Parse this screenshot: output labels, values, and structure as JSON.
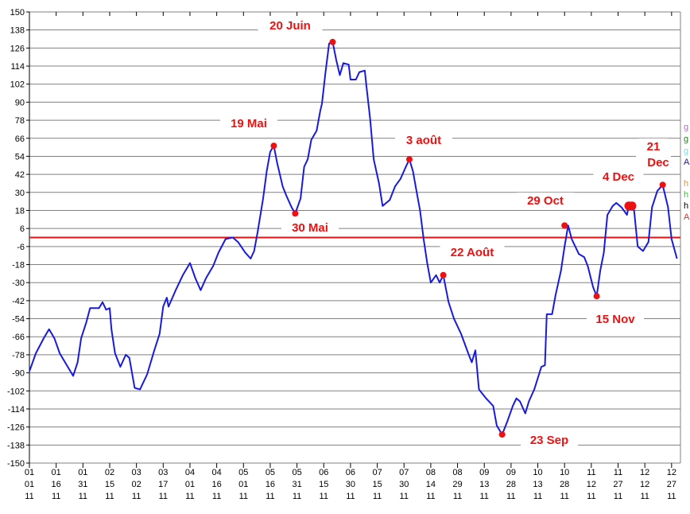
{
  "chart_data": {
    "type": "line",
    "title": "",
    "xlabel": "",
    "ylabel": "",
    "ylim": [
      -150,
      150
    ],
    "ytick_step": 12,
    "grid": "horizontal",
    "x_unit": "days since 01/01/11",
    "xlim": [
      0,
      364
    ],
    "x_tick_labels": [
      [
        "01",
        "01",
        "11"
      ],
      [
        "01",
        "16",
        "11"
      ],
      [
        "01",
        "31",
        "11"
      ],
      [
        "02",
        "15",
        "11"
      ],
      [
        "03",
        "02",
        "11"
      ],
      [
        "03",
        "17",
        "11"
      ],
      [
        "04",
        "01",
        "11"
      ],
      [
        "04",
        "16",
        "11"
      ],
      [
        "05",
        "01",
        "11"
      ],
      [
        "05",
        "16",
        "11"
      ],
      [
        "05",
        "31",
        "11"
      ],
      [
        "06",
        "15",
        "11"
      ],
      [
        "06",
        "30",
        "11"
      ],
      [
        "07",
        "15",
        "11"
      ],
      [
        "07",
        "30",
        "11"
      ],
      [
        "08",
        "14",
        "11"
      ],
      [
        "08",
        "29",
        "11"
      ],
      [
        "09",
        "13",
        "11"
      ],
      [
        "09",
        "28",
        "11"
      ],
      [
        "10",
        "13",
        "11"
      ],
      [
        "10",
        "28",
        "11"
      ],
      [
        "11",
        "12",
        "11"
      ],
      [
        "11",
        "27",
        "11"
      ],
      [
        "12",
        "12",
        "11"
      ],
      [
        "12",
        "27",
        "11"
      ]
    ],
    "reference_line": {
      "value": 0,
      "color": "#ee1111"
    },
    "series": [
      {
        "name": "series",
        "color": "#1a1adf",
        "x": [
          0,
          3.6,
          8,
          11,
          14,
          17,
          21,
          24.5,
          27,
          29,
          32,
          34,
          39,
          41,
          43,
          45,
          46,
          48,
          51,
          54,
          56,
          59,
          62,
          66,
          70,
          73,
          75,
          77,
          78,
          82,
          86,
          90,
          93,
          96,
          99,
          103,
          106,
          110,
          114,
          117,
          121,
          124,
          126,
          128,
          131,
          133,
          135,
          137,
          139,
          142,
          144,
          147,
          149,
          152,
          154,
          156,
          158,
          161,
          163,
          164,
          166,
          168,
          170,
          172,
          174,
          176,
          179,
          180,
          183,
          185,
          188,
          189,
          191,
          193,
          196,
          198,
          202,
          205,
          208,
          211,
          213,
          215,
          217,
          219,
          221,
          223,
          225,
          228,
          230,
          232,
          235,
          238,
          242,
          246,
          248,
          250,
          252,
          256,
          260,
          262,
          265,
          268,
          271,
          273,
          275,
          278,
          280,
          283,
          287,
          289,
          290,
          293,
          295,
          298,
          300,
          302,
          304,
          308,
          311,
          313,
          316,
          318,
          320,
          322,
          324,
          327,
          329,
          332,
          335,
          336,
          339,
          341,
          344,
          347,
          349,
          352,
          355,
          358,
          360,
          363
        ],
        "y": [
          -89,
          -77,
          -67,
          -61,
          -67,
          -77,
          -85,
          -92,
          -83,
          -67,
          -56,
          -47,
          -47,
          -43,
          -48,
          -47,
          -61,
          -77,
          -86,
          -78,
          -80,
          -100,
          -101,
          -91,
          -75,
          -64,
          -46,
          -40,
          -46,
          -35,
          -25,
          -17,
          -27,
          -35,
          -27,
          -19,
          -10,
          -1,
          0,
          -3,
          -10,
          -14,
          -9,
          4,
          26,
          44,
          57,
          61,
          49,
          34,
          28,
          20,
          16,
          26,
          47,
          52,
          65,
          71,
          84,
          89,
          110,
          129,
          130,
          118,
          108,
          116,
          115,
          105,
          105,
          110,
          111,
          100,
          79,
          52,
          36,
          21,
          25,
          34,
          39,
          47,
          52,
          44,
          31,
          18,
          -1,
          -17,
          -30,
          -25,
          -30,
          -25,
          -43,
          -54,
          -64,
          -77,
          -83,
          -75,
          -101,
          -107,
          -112,
          -125,
          -131,
          -122,
          -112,
          -107,
          -109,
          -117,
          -109,
          -101,
          -86,
          -85,
          -51,
          -51,
          -38,
          -22,
          -6,
          8,
          -1,
          -11,
          -13,
          -19,
          -33,
          -39,
          -22,
          -10,
          15,
          21,
          23,
          20,
          15,
          21,
          18,
          -6,
          -9,
          -3,
          20,
          31,
          35,
          20,
          -1,
          -14
        ]
      }
    ],
    "annotations": [
      {
        "text": "20 Juin",
        "x": 170,
        "y": 130
      },
      {
        "text": "19 Mai",
        "x": 137,
        "y": 61
      },
      {
        "text": "30 Mai",
        "x": 149,
        "y": 16
      },
      {
        "text": "3 août",
        "x": 213,
        "y": 52
      },
      {
        "text": "22 Août",
        "x": 232,
        "y": -25
      },
      {
        "text": "23 Sep",
        "x": 265,
        "y": -131
      },
      {
        "text": "29 Oct",
        "x": 300,
        "y": 8
      },
      {
        "text": "15 Nov",
        "x": 318,
        "y": -39
      },
      {
        "text": "4 Dec",
        "x": 336,
        "y": 21
      },
      {
        "text": "21",
        "text2": "Dec",
        "x": 355,
        "y": 35
      }
    ],
    "legend_fragments": [
      {
        "text": "g",
        "color": "#b070c0"
      },
      {
        "text": "g",
        "color": "#208020"
      },
      {
        "text": "g",
        "color": "#80d8e0"
      },
      {
        "text": "A",
        "color": "#202080"
      },
      {
        "text": "h",
        "color": "#e09040"
      },
      {
        "text": "h",
        "color": "#40c040"
      },
      {
        "text": "h",
        "color": "#000000"
      },
      {
        "text": "A",
        "color": "#e03030"
      }
    ]
  }
}
